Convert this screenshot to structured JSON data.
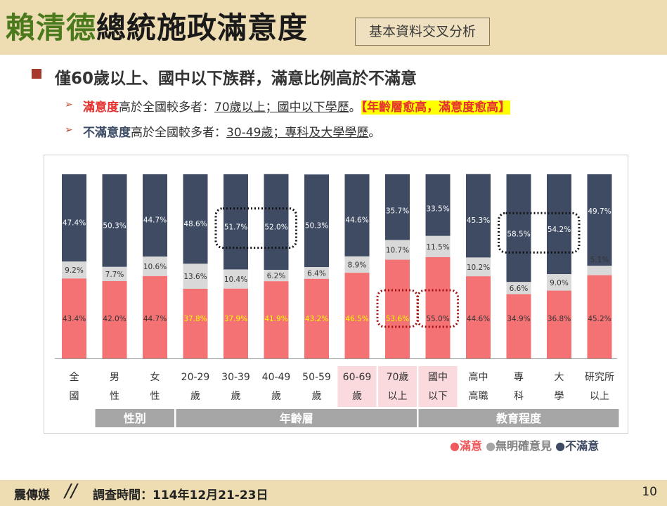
{
  "header": {
    "title_highlight": "賴清德",
    "title_rest": "總統施政滿意度",
    "subtitle_box": "基本資料交叉分析"
  },
  "content": {
    "headline": "僅60歲以上、國中以下族群，滿意比例高於不滿意",
    "bullet1": {
      "arrow": "➢",
      "term": "滿意度",
      "text1": "高於全國較多者：",
      "groups": "70歲以上；國中以下學歷",
      "text2": "。",
      "highlight": "【年齡層愈高，滿意度愈高】"
    },
    "bullet2": {
      "arrow": "➢",
      "term": "不滿意度",
      "text1": "高於全國較多者：",
      "groups": "30-49歲；專科及大學學歷",
      "text2": "。"
    }
  },
  "chart_data": {
    "type": "bar",
    "stacked": true,
    "ylim": [
      0,
      100
    ],
    "categories": [
      [
        "全",
        "國"
      ],
      [
        "男",
        "性"
      ],
      [
        "女",
        "性"
      ],
      [
        "20-29",
        "歲"
      ],
      [
        "30-39",
        "歲"
      ],
      [
        "40-49",
        "歲"
      ],
      [
        "50-59",
        "歲"
      ],
      [
        "60-69",
        "歲"
      ],
      [
        "70歲",
        "以上"
      ],
      [
        "國中",
        "以下"
      ],
      [
        "高中",
        "高職"
      ],
      [
        "專",
        "科"
      ],
      [
        "大",
        "學"
      ],
      [
        "研究所",
        "以上"
      ]
    ],
    "series": [
      {
        "name": "滿意",
        "color": "#f47174",
        "values": [
          43.4,
          42.0,
          44.7,
          37.8,
          37.9,
          41.9,
          43.2,
          46.5,
          53.6,
          55.0,
          44.6,
          34.9,
          36.8,
          45.2
        ]
      },
      {
        "name": "無明確意見",
        "color": "#d9d9d9",
        "values": [
          9.2,
          7.7,
          10.6,
          13.6,
          10.4,
          6.2,
          6.4,
          8.9,
          10.7,
          11.5,
          10.2,
          6.6,
          9.0,
          5.1
        ]
      },
      {
        "name": "不滿意",
        "color": "#3e4b63",
        "values": [
          47.4,
          50.3,
          44.7,
          48.6,
          51.7,
          52.0,
          50.3,
          44.6,
          35.7,
          33.5,
          45.3,
          58.5,
          54.2,
          49.7
        ]
      }
    ],
    "value_labels": {
      "satisfied": [
        "43.4%",
        "42.0%",
        "44.7%",
        "37.8%",
        "37.9%",
        "41.9%",
        "43.2%",
        "46.5%",
        "53.6%",
        "55.0%",
        "44.6%",
        "34.9%",
        "36.8%",
        "45.2%"
      ],
      "neutral": [
        "9.2%",
        "7.7%",
        "10.6%",
        "13.6%",
        "10.4%",
        "6.2%",
        "6.4%",
        "8.9%",
        "10.7%",
        "11.5%",
        "10.2%",
        "6.6%",
        "9.0%",
        "5.1%"
      ],
      "dissatisfied": [
        "47.4%",
        "50.3%",
        "44.7%",
        "48.6%",
        "51.7%",
        "52.0%",
        "50.3%",
        "44.6%",
        "35.7%",
        "33.5%",
        "45.3%",
        "58.5%",
        "54.2%",
        "49.7%"
      ]
    },
    "satisfied_label_colors": [
      "#333333",
      "#333333",
      "#333333",
      "#ffff00",
      "#ffff00",
      "#ffff00",
      "#ffff00",
      "#ffff00",
      "#ffff00",
      "#333333",
      "#333333",
      "#333333",
      "#333333",
      "#333333"
    ],
    "highlighted_categories": [
      7,
      8,
      9
    ],
    "dotted_boxes": [
      {
        "segment": "dissatisfied",
        "categories": [
          4,
          5
        ],
        "color": "#111111"
      },
      {
        "segment": "dissatisfied",
        "categories": [
          11,
          12
        ],
        "color": "#111111"
      },
      {
        "segment": "satisfied",
        "categories": [
          8
        ],
        "color": "#a01010"
      },
      {
        "segment": "satisfied",
        "categories": [
          9
        ],
        "color": "#a01010"
      }
    ],
    "group_labels": [
      {
        "label": "性別",
        "categories": [
          1,
          2
        ]
      },
      {
        "label": "年齡層",
        "categories": [
          3,
          8
        ]
      },
      {
        "label": "教育程度",
        "categories": [
          9,
          13
        ]
      }
    ],
    "legend": {
      "position": "bottom-right",
      "items": [
        {
          "name": "滿意",
          "color": "#f05a5d"
        },
        {
          "name": "無明確意見",
          "color": "#a6a6a6"
        },
        {
          "name": "不滿意",
          "color": "#3e4b63"
        }
      ]
    }
  },
  "footer": {
    "brand": "震傳媒",
    "survey_time": "調查時間：114年12月21-23日",
    "page_number": "10"
  }
}
